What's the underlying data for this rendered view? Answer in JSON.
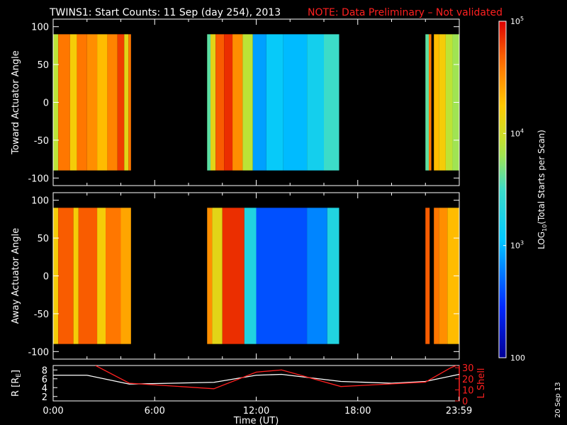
{
  "title": {
    "main": "TWINS1: Start Counts: 11 Sep (day 254), 2013",
    "note": "NOTE: Data Preliminary – Not validated"
  },
  "stamp": "20 Sep 13",
  "colors": {
    "background": "#000000",
    "foreground": "#ffffff",
    "note": "#ff2020",
    "lshell": "#ff2020",
    "radius": "#ffffff"
  },
  "chart_data": [
    {
      "type": "heatmap",
      "panel": "top",
      "ylabel": "Toward Actuator Angle",
      "xlim": [
        0,
        24
      ],
      "ylim": [
        -110,
        110
      ],
      "yticks": [
        100,
        50,
        0,
        -50,
        -100
      ],
      "data_y_range": [
        -90,
        90
      ],
      "colorscale": "log10 counts, 100 to 1e5 (rainbow: blue low, red high)",
      "columns": [
        {
          "start": 0.0,
          "end": 0.3,
          "level": 3.9
        },
        {
          "start": 0.3,
          "end": 1.0,
          "level": 4.6
        },
        {
          "start": 1.0,
          "end": 1.4,
          "level": 4.2
        },
        {
          "start": 1.4,
          "end": 2.0,
          "level": 4.6
        },
        {
          "start": 2.0,
          "end": 2.6,
          "level": 4.5
        },
        {
          "start": 2.6,
          "end": 3.2,
          "level": 4.3
        },
        {
          "start": 3.2,
          "end": 3.8,
          "level": 4.55
        },
        {
          "start": 3.8,
          "end": 4.2,
          "level": 4.8
        },
        {
          "start": 4.2,
          "end": 4.45,
          "level": 4.1
        },
        {
          "start": 4.45,
          "end": 4.6,
          "level": 4.6
        },
        {
          "start": 9.1,
          "end": 9.3,
          "level": 3.6
        },
        {
          "start": 9.3,
          "end": 9.6,
          "level": 4.1
        },
        {
          "start": 9.6,
          "end": 10.1,
          "level": 4.7
        },
        {
          "start": 10.1,
          "end": 10.6,
          "level": 4.85
        },
        {
          "start": 10.6,
          "end": 11.2,
          "level": 4.5
        },
        {
          "start": 11.2,
          "end": 11.8,
          "level": 3.9
        },
        {
          "start": 11.8,
          "end": 12.6,
          "level": 2.9
        },
        {
          "start": 12.6,
          "end": 13.6,
          "level": 3.1
        },
        {
          "start": 13.6,
          "end": 15.0,
          "level": 3.0
        },
        {
          "start": 15.0,
          "end": 16.0,
          "level": 3.2
        },
        {
          "start": 16.0,
          "end": 16.9,
          "level": 3.5
        },
        {
          "start": 22.0,
          "end": 22.2,
          "level": 3.6
        },
        {
          "start": 22.2,
          "end": 22.35,
          "level": 4.6
        },
        {
          "start": 22.5,
          "end": 22.8,
          "level": 4.3
        },
        {
          "start": 22.8,
          "end": 23.2,
          "level": 4.2
        },
        {
          "start": 23.2,
          "end": 23.6,
          "level": 3.9
        },
        {
          "start": 23.6,
          "end": 24.0,
          "level": 3.8
        }
      ]
    },
    {
      "type": "heatmap",
      "panel": "middle",
      "ylabel": "Away Actuator Angle",
      "xlim": [
        0,
        24
      ],
      "ylim": [
        -110,
        110
      ],
      "yticks": [
        100,
        50,
        0,
        -50,
        -100
      ],
      "data_y_range": [
        -90,
        90
      ],
      "columns": [
        {
          "start": 0.0,
          "end": 0.3,
          "level": 4.2
        },
        {
          "start": 0.3,
          "end": 1.2,
          "level": 4.7
        },
        {
          "start": 1.2,
          "end": 1.5,
          "level": 4.2
        },
        {
          "start": 1.5,
          "end": 2.6,
          "level": 4.7
        },
        {
          "start": 2.6,
          "end": 3.1,
          "level": 4.2
        },
        {
          "start": 3.1,
          "end": 4.0,
          "level": 4.6
        },
        {
          "start": 4.0,
          "end": 4.6,
          "level": 4.4
        },
        {
          "start": 9.1,
          "end": 9.4,
          "level": 4.5
        },
        {
          "start": 9.4,
          "end": 10.0,
          "level": 4.1
        },
        {
          "start": 10.0,
          "end": 11.3,
          "level": 4.85
        },
        {
          "start": 11.3,
          "end": 12.0,
          "level": 3.3
        },
        {
          "start": 12.0,
          "end": 15.0,
          "level": 2.6
        },
        {
          "start": 15.0,
          "end": 16.2,
          "level": 2.8
        },
        {
          "start": 16.2,
          "end": 16.9,
          "level": 3.3
        },
        {
          "start": 22.0,
          "end": 22.25,
          "level": 4.7
        },
        {
          "start": 22.5,
          "end": 22.8,
          "level": 4.6
        },
        {
          "start": 22.8,
          "end": 23.3,
          "level": 4.5
        },
        {
          "start": 23.3,
          "end": 24.0,
          "level": 4.3
        }
      ]
    },
    {
      "type": "line",
      "panel": "bottom",
      "xlabel": "Time (UT)",
      "xticks": [
        "0:00",
        "6:00",
        "12:00",
        "18:00",
        "23:59"
      ],
      "xlim": [
        0,
        24
      ],
      "ylabel_left": "R [R",
      "ylabel_left_sub": "E",
      "ylabel_left_end": "]",
      "ylim_left": [
        1,
        9
      ],
      "yticks_left": [
        8,
        6,
        4,
        2
      ],
      "ylabel_right": "L Shell",
      "ylim_right": [
        0,
        32
      ],
      "yticks_right": [
        30,
        20,
        10,
        0
      ],
      "series": [
        {
          "axis": "left",
          "color": "#ffffff",
          "x": [
            0,
            2,
            4.5,
            9.5,
            12,
            13.5,
            17,
            20,
            22,
            24
          ],
          "y": [
            6.8,
            6.8,
            4.8,
            5.2,
            6.8,
            7.0,
            5.4,
            5.0,
            5.4,
            7.0
          ]
        },
        {
          "axis": "right",
          "color": "#ff2020",
          "x": [
            2.5,
            4.5,
            9.5,
            12,
            13.5,
            17,
            22,
            23.5,
            24
          ],
          "y": [
            32,
            16,
            11,
            26,
            28,
            13,
            17,
            30,
            33
          ]
        }
      ]
    },
    {
      "type": "colorbar",
      "label_pre": "LOG",
      "label_sub": "10",
      "label_post": "(Total Starts per Scan)",
      "range": [
        100,
        100000
      ],
      "ticks": [
        {
          "value": 5,
          "base": "10",
          "exp": "5"
        },
        {
          "value": 4,
          "base": "10",
          "exp": "4"
        },
        {
          "value": 3,
          "base": "10",
          "exp": "3"
        },
        {
          "value": 2,
          "base": "100",
          "exp": ""
        }
      ]
    }
  ]
}
